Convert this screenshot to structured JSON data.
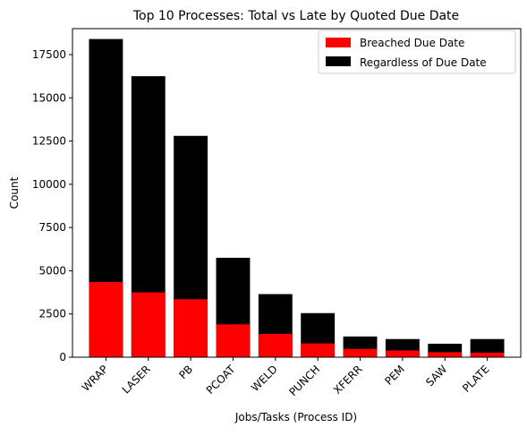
{
  "chart_data": {
    "type": "bar",
    "title": "Top 10 Processes: Total vs Late by Quoted Due Date",
    "xlabel": "Jobs/Tasks (Process ID)",
    "ylabel": "Count",
    "ylim": [
      0,
      19000
    ],
    "yticks": [
      0,
      2500,
      5000,
      7500,
      10000,
      12500,
      15000,
      17500
    ],
    "categories": [
      "WRAP",
      "LASER",
      "PB",
      "PCOAT",
      "WELD",
      "PUNCH",
      "XFERR",
      "PEM",
      "SAW",
      "PLATE"
    ],
    "series": [
      {
        "name": "Regardless of Due Date",
        "color": "#000000",
        "values": [
          18400,
          16250,
          12800,
          5750,
          3650,
          2550,
          1200,
          1050,
          780,
          1050
        ]
      },
      {
        "name": "Breached Due Date",
        "color": "#ff0000",
        "values": [
          4350,
          3750,
          3350,
          1900,
          1350,
          800,
          480,
          390,
          290,
          260
        ]
      }
    ],
    "legend": {
      "placement": "upper-right",
      "entries": [
        {
          "label": "Breached Due Date",
          "color": "#ff0000"
        },
        {
          "label": "Regardless of Due Date",
          "color": "#000000"
        }
      ]
    },
    "grid": false
  }
}
